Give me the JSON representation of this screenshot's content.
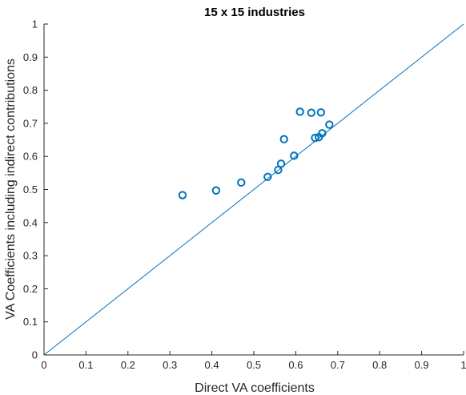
{
  "chart_data": {
    "type": "scatter",
    "title": "15 x 15 industries",
    "xlabel": "Direct VA coefficients",
    "ylabel": "VA Coefficients including indirect contributions",
    "xlim": [
      0,
      1
    ],
    "ylim": [
      0,
      1
    ],
    "xticks": [
      "0",
      "0.1",
      "0.2",
      "0.3",
      "0.4",
      "0.5",
      "0.6",
      "0.7",
      "0.8",
      "0.9",
      "1"
    ],
    "yticks": [
      "0",
      "0.1",
      "0.2",
      "0.3",
      "0.4",
      "0.5",
      "0.6",
      "0.7",
      "0.8",
      "0.9",
      "1"
    ],
    "grid": false,
    "marker": "open-circle",
    "color": "#0072BD",
    "points": [
      {
        "x": 0.33,
        "y": 0.483
      },
      {
        "x": 0.41,
        "y": 0.497
      },
      {
        "x": 0.47,
        "y": 0.521
      },
      {
        "x": 0.533,
        "y": 0.538
      },
      {
        "x": 0.558,
        "y": 0.559
      },
      {
        "x": 0.565,
        "y": 0.578
      },
      {
        "x": 0.572,
        "y": 0.652
      },
      {
        "x": 0.596,
        "y": 0.602
      },
      {
        "x": 0.61,
        "y": 0.735
      },
      {
        "x": 0.637,
        "y": 0.732
      },
      {
        "x": 0.646,
        "y": 0.656
      },
      {
        "x": 0.655,
        "y": 0.658
      },
      {
        "x": 0.66,
        "y": 0.733
      },
      {
        "x": 0.663,
        "y": 0.67
      },
      {
        "x": 0.68,
        "y": 0.696
      }
    ],
    "reference_line": {
      "from": [
        0,
        0
      ],
      "to": [
        1,
        1
      ]
    }
  }
}
